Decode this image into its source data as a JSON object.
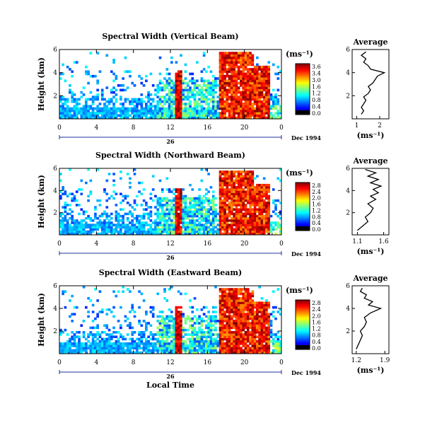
{
  "chart_data": [
    {
      "type": "heatmap",
      "panel": "vertical",
      "title": "Spectral Width (Vertical Beam)",
      "ylabel": "Height (km)",
      "xlim": [
        0,
        24
      ],
      "ylim": [
        0,
        6
      ],
      "x_ticks": [
        "0",
        "4",
        "8",
        "12",
        "16",
        "20",
        "0"
      ],
      "y_ticks": [
        "2",
        "4",
        "6"
      ],
      "date_label": "26",
      "date_suffix": "Dec 1994",
      "colorbar": {
        "unit": "(ms⁻¹)",
        "ticks": [
          "3.6",
          "3.4",
          "3.0",
          "1.6",
          "1.2",
          "0.8",
          "0.4",
          "0.0"
        ],
        "max": 3.6
      },
      "profile": {
        "title": "Average",
        "xlabel": "(ms⁻¹)",
        "x_ticks": [
          "1",
          "2"
        ],
        "xlim": [
          0.8,
          2.4
        ],
        "y_ticks": [
          "2",
          "4",
          "6"
        ],
        "points": [
          [
            1.2,
            0.4
          ],
          [
            1.3,
            0.7
          ],
          [
            1.2,
            1.0
          ],
          [
            1.3,
            1.3
          ],
          [
            1.4,
            1.6
          ],
          [
            1.3,
            1.9
          ],
          [
            1.5,
            2.2
          ],
          [
            1.6,
            2.5
          ],
          [
            1.5,
            2.8
          ],
          [
            1.7,
            3.1
          ],
          [
            1.8,
            3.4
          ],
          [
            1.9,
            3.7
          ],
          [
            2.2,
            4.0
          ],
          [
            1.6,
            4.3
          ],
          [
            1.5,
            4.6
          ],
          [
            1.3,
            4.9
          ],
          [
            1.4,
            5.2
          ],
          [
            1.2,
            5.5
          ],
          [
            1.4,
            5.8
          ]
        ]
      }
    },
    {
      "type": "heatmap",
      "panel": "northward",
      "title": "Spectral Width (Northward Beam)",
      "ylabel": "Height (km)",
      "xlim": [
        0,
        24
      ],
      "ylim": [
        0,
        6
      ],
      "x_ticks": [
        "0",
        "4",
        "8",
        "12",
        "16",
        "20",
        "0"
      ],
      "y_ticks": [
        "2",
        "4",
        "6"
      ],
      "date_label": "26",
      "date_suffix": "Dec 1994",
      "colorbar": {
        "unit": "(ms⁻¹)",
        "ticks": [
          "2.8",
          "2.4",
          "2.0",
          "1.6",
          "1.2",
          "0.8",
          "0.4",
          "0.0"
        ],
        "max": 2.8
      },
      "profile": {
        "title": "Average",
        "xlabel": "(ms⁻¹)",
        "x_ticks": [
          "1.1",
          "1.6"
        ],
        "xlim": [
          1.0,
          1.7
        ],
        "y_ticks": [
          "2",
          "4",
          "6"
        ],
        "points": [
          [
            1.1,
            0.4
          ],
          [
            1.2,
            0.8
          ],
          [
            1.3,
            1.2
          ],
          [
            1.25,
            1.6
          ],
          [
            1.35,
            2.0
          ],
          [
            1.4,
            2.4
          ],
          [
            1.3,
            2.8
          ],
          [
            1.45,
            3.2
          ],
          [
            1.35,
            3.5
          ],
          [
            1.5,
            3.8
          ],
          [
            1.4,
            4.1
          ],
          [
            1.55,
            4.4
          ],
          [
            1.35,
            4.7
          ],
          [
            1.5,
            5.0
          ],
          [
            1.3,
            5.3
          ],
          [
            1.45,
            5.6
          ],
          [
            1.25,
            5.9
          ]
        ]
      }
    },
    {
      "type": "heatmap",
      "panel": "eastward",
      "title": "Spectral Width (Eastward Beam)",
      "ylabel": "Height (km)",
      "xlabel": "Local Time",
      "xlim": [
        0,
        24
      ],
      "ylim": [
        0,
        6
      ],
      "x_ticks": [
        "0",
        "4",
        "8",
        "12",
        "16",
        "20",
        "0"
      ],
      "y_ticks": [
        "2",
        "4",
        "6"
      ],
      "date_label": "26",
      "date_suffix": "Dec 1994",
      "colorbar": {
        "unit": "(ms⁻¹)",
        "ticks": [
          "2.8",
          "2.4",
          "2.0",
          "1.6",
          "1.2",
          "0.8",
          "0.4",
          "0.0"
        ],
        "max": 2.8
      },
      "profile": {
        "title": "Average",
        "xlabel": "(ms⁻¹)",
        "x_ticks": [
          "1.2",
          "1.9"
        ],
        "xlim": [
          1.1,
          2.0
        ],
        "y_ticks": [
          "2",
          "4",
          "6"
        ],
        "points": [
          [
            1.2,
            0.4
          ],
          [
            1.25,
            0.8
          ],
          [
            1.3,
            1.2
          ],
          [
            1.35,
            1.6
          ],
          [
            1.3,
            2.0
          ],
          [
            1.4,
            2.4
          ],
          [
            1.45,
            2.8
          ],
          [
            1.4,
            3.2
          ],
          [
            1.55,
            3.6
          ],
          [
            1.8,
            4.0
          ],
          [
            1.5,
            4.3
          ],
          [
            1.6,
            4.6
          ],
          [
            1.4,
            4.9
          ],
          [
            1.45,
            5.2
          ],
          [
            1.3,
            5.5
          ],
          [
            1.35,
            5.8
          ]
        ]
      }
    }
  ]
}
